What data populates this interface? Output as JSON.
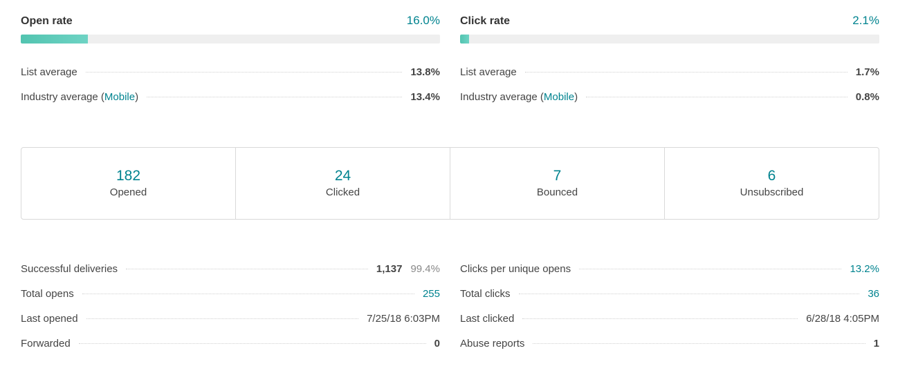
{
  "open_rate": {
    "title": "Open rate",
    "value": "16.0%",
    "fill_fraction": 0.16,
    "list_average_label": "List average",
    "list_average_value": "13.8%",
    "industry_label_prefix": "Industry average (",
    "industry_link": "Mobile",
    "industry_label_suffix": ")",
    "industry_value": "13.4%"
  },
  "click_rate": {
    "title": "Click rate",
    "value": "2.1%",
    "fill_fraction": 0.021,
    "list_average_label": "List average",
    "list_average_value": "1.7%",
    "industry_label_prefix": "Industry average (",
    "industry_link": "Mobile",
    "industry_label_suffix": ")",
    "industry_value": "0.8%"
  },
  "stats": [
    {
      "number": "182",
      "label": "Opened"
    },
    {
      "number": "24",
      "label": "Clicked"
    },
    {
      "number": "7",
      "label": "Bounced"
    },
    {
      "number": "6",
      "label": "Unsubscribed"
    }
  ],
  "left_details": [
    {
      "label": "Successful deliveries",
      "value": "1,137",
      "percent": "99.4%"
    },
    {
      "label": "Total opens",
      "value": "255"
    },
    {
      "label": "Last opened",
      "value": "7/25/18 6:03PM"
    },
    {
      "label": "Forwarded",
      "value": "0"
    }
  ],
  "right_details": [
    {
      "label": "Clicks per unique opens",
      "value": "13.2%"
    },
    {
      "label": "Total clicks",
      "value": "36"
    },
    {
      "label": "Last clicked",
      "value": "6/28/18 4:05PM"
    },
    {
      "label": "Abuse reports",
      "value": "1"
    }
  ],
  "colors": {
    "accent": "#00838f",
    "bar_fill": "#52c4b0",
    "bar_track": "#efefef"
  }
}
